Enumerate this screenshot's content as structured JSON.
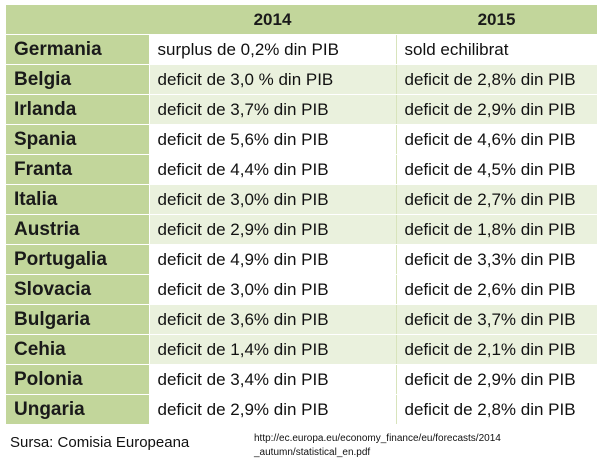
{
  "table": {
    "headers": [
      "",
      "2014",
      "2015"
    ],
    "rows": [
      {
        "country": "Germania",
        "y2014": "surplus de 0,2% din PIB",
        "y2015": "sold echilibrat",
        "band": false
      },
      {
        "country": "Belgia",
        "y2014": "deficit de 3,0 % din PIB",
        "y2015": "deficit de 2,8% din PIB",
        "band": true
      },
      {
        "country": "Irlanda",
        "y2014": "deficit de 3,7% din PIB",
        "y2015": "deficit de 2,9% din PIB",
        "band": true
      },
      {
        "country": "Spania",
        "y2014": "deficit de 5,6% din PIB",
        "y2015": "deficit de 4,6% din PIB",
        "band": false
      },
      {
        "country": "Franta",
        "y2014": "deficit de 4,4% din PIB",
        "y2015": "deficit de 4,5% din PIB",
        "band": false
      },
      {
        "country": "Italia",
        "y2014": "deficit de 3,0% din PIB",
        "y2015": "deficit de 2,7% din PIB",
        "band": true
      },
      {
        "country": "Austria",
        "y2014": "deficit de 2,9% din PIB",
        "y2015": "deficit de 1,8% din PIB",
        "band": true
      },
      {
        "country": "Portugalia",
        "y2014": "deficit de 4,9% din PIB",
        "y2015": "deficit de 3,3% din PIB",
        "band": false
      },
      {
        "country": "Slovacia",
        "y2014": "deficit de 3,0% din PIB",
        "y2015": "deficit de 2,6% din PIB",
        "band": false
      },
      {
        "country": "Bulgaria",
        "y2014": "deficit de 3,6% din PIB",
        "y2015": "deficit de 3,7% din PIB",
        "band": true
      },
      {
        "country": "Cehia",
        "y2014": "deficit de 1,4% din PIB",
        "y2015": "deficit de 2,1% din PIB",
        "band": true
      },
      {
        "country": "Polonia",
        "y2014": "deficit de 3,4% din PIB",
        "y2015": "deficit de 2,9% din PIB",
        "band": false
      },
      {
        "country": "Ungaria",
        "y2014": "deficit de 2,9% din PIB",
        "y2015": "deficit de 2,8% din PIB",
        "band": false
      }
    ]
  },
  "source_label": "Sursa: Comisia Europeana",
  "source_url": "http://ec.europa.eu/economy_finance/eu/forecasts/2014\n_autumn/statistical_en.pdf",
  "colors": {
    "header_fill": "#c2d69b",
    "band_fill": "#eaf1dd",
    "plain_fill": "#ffffff"
  }
}
